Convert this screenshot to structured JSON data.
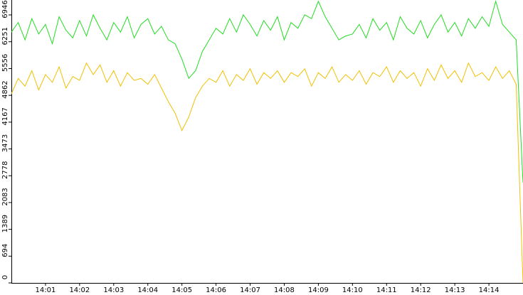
{
  "chart_data": {
    "type": "line",
    "x": [
      840,
      840.2,
      840.4,
      840.6,
      840.8,
      841,
      841.2,
      841.4,
      841.6,
      841.8,
      842,
      842.2,
      842.4,
      842.6,
      842.8,
      843,
      843.2,
      843.4,
      843.6,
      843.8,
      844,
      844.2,
      844.4,
      844.6,
      844.8,
      845,
      845.2,
      845.4,
      845.6,
      845.8,
      846,
      846.2,
      846.4,
      846.6,
      846.8,
      847,
      847.2,
      847.4,
      847.6,
      847.8,
      848,
      848.2,
      848.4,
      848.6,
      848.8,
      849,
      849.2,
      849.4,
      849.6,
      849.8,
      850,
      850.2,
      850.4,
      850.6,
      850.8,
      851,
      851.2,
      851.4,
      851.6,
      851.8,
      852,
      852.2,
      852.4,
      852.6,
      852.8,
      853,
      853.2,
      853.4,
      853.6,
      853.8,
      854,
      854.2,
      854.4,
      854.6,
      854.8,
      855
    ],
    "series": [
      {
        "color": "#22dd22",
        "values": [
          6500,
          6750,
          6300,
          6850,
          6450,
          6700,
          6200,
          6900,
          6550,
          6350,
          6800,
          6400,
          6950,
          6600,
          6300,
          6750,
          6500,
          6900,
          6350,
          6700,
          6850,
          6450,
          6650,
          6300,
          6200,
          5800,
          5300,
          5500,
          6000,
          6300,
          6600,
          6450,
          6850,
          6500,
          6950,
          6700,
          6400,
          6800,
          6550,
          6900,
          6300,
          6750,
          6600,
          6950,
          6850,
          7300,
          6900,
          6600,
          6300,
          6400,
          6450,
          6700,
          6350,
          6850,
          6550,
          6750,
          6300,
          6900,
          6600,
          6450,
          6800,
          6350,
          6700,
          6950,
          6500,
          6750,
          6400,
          6850,
          6600,
          6900,
          6650,
          7300,
          6700,
          6500,
          6300,
          2600
        ]
      },
      {
        "color": "#f0c000",
        "values": [
          4900,
          5300,
          5100,
          5500,
          5000,
          5400,
          5200,
          5600,
          5050,
          5350,
          5250,
          5700,
          5400,
          5650,
          5200,
          5500,
          5100,
          5450,
          5250,
          5300,
          5150,
          5400,
          5050,
          4700,
          4400,
          3950,
          4300,
          4800,
          5100,
          5300,
          5200,
          5500,
          5100,
          5400,
          5250,
          5550,
          5150,
          5450,
          5300,
          5500,
          5200,
          5450,
          5350,
          5550,
          5100,
          5450,
          5300,
          5600,
          5200,
          5400,
          5250,
          5500,
          5150,
          5450,
          5350,
          5600,
          5200,
          5500,
          5300,
          5450,
          5100,
          5550,
          5250,
          5650,
          5300,
          5500,
          5200,
          5700,
          5350,
          5450,
          5250,
          5600,
          5300,
          5500,
          5150,
          0
        ]
      }
    ],
    "xlim": [
      840,
      855
    ],
    "xticks": [
      {
        "value": 841,
        "label": "14:01"
      },
      {
        "value": 842,
        "label": "14:02"
      },
      {
        "value": 843,
        "label": "14:03"
      },
      {
        "value": 844,
        "label": "14:04"
      },
      {
        "value": 845,
        "label": "14:05"
      },
      {
        "value": 846,
        "label": "14:06"
      },
      {
        "value": 847,
        "label": "14:07"
      },
      {
        "value": 848,
        "label": "14:08"
      },
      {
        "value": 849,
        "label": "14:09"
      },
      {
        "value": 850,
        "label": "14:10"
      },
      {
        "value": 851,
        "label": "14:11"
      },
      {
        "value": 852,
        "label": "14:12"
      },
      {
        "value": 853,
        "label": "14:13"
      },
      {
        "value": 854,
        "label": "14:14"
      }
    ],
    "ylim": [
      0,
      7333
    ],
    "yticks": [
      0,
      694,
      1389,
      2083,
      2778,
      3473,
      4167,
      4862,
      5556,
      6251,
      6946
    ]
  }
}
